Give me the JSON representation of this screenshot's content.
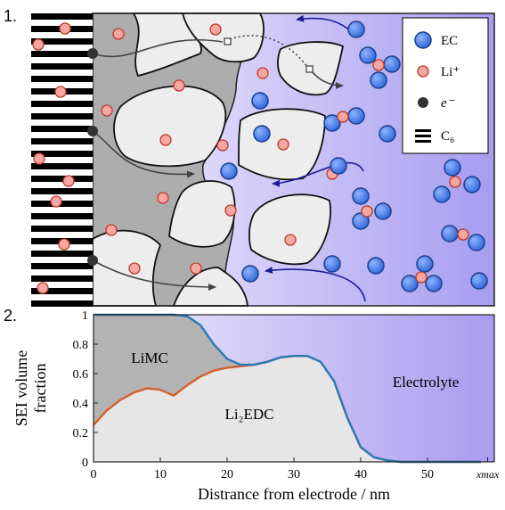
{
  "panels": [
    "1.",
    "2."
  ],
  "legend": [
    "EC",
    "Li⁺",
    "e⁻",
    "C₆"
  ],
  "chart_data": {
    "type": "stacked-area",
    "xlabel": "Distrance from electrode / nm",
    "ylabel": [
      "SEI volume",
      "fraction"
    ],
    "x": [
      0,
      2,
      4,
      6,
      8,
      10,
      12,
      14,
      16,
      18,
      20,
      22,
      24,
      26,
      28,
      30,
      32,
      34,
      36,
      38,
      40,
      42,
      44,
      46,
      48,
      50,
      52,
      54,
      56,
      58
    ],
    "series": [
      {
        "name": "Li₂EDC",
        "color": "#e6e6e6",
        "line_color": "#d4602a",
        "values": [
          0.25,
          0.35,
          0.42,
          0.47,
          0.5,
          0.49,
          0.45,
          0.52,
          0.58,
          0.62,
          0.64,
          0.65,
          0.66,
          0.68,
          0.71,
          0.72,
          0.72,
          0.68,
          0.55,
          0.3,
          0.1,
          0.03,
          0.01,
          0,
          0,
          0,
          0,
          0,
          0,
          0
        ]
      },
      {
        "name": "LiMC",
        "color": "#b3b3b3",
        "line_color": "#2a7ab5",
        "values": [
          0.75,
          0.65,
          0.58,
          0.53,
          0.5,
          0.51,
          0.55,
          0.47,
          0.35,
          0.18,
          0.06,
          0.01,
          0,
          0,
          0,
          0,
          0,
          0,
          0,
          0,
          0,
          0,
          0,
          0,
          0,
          0,
          0,
          0,
          0,
          0
        ]
      },
      {
        "name": "Electrolyte",
        "color": "#a99cf0",
        "values": [
          0,
          0,
          0,
          0,
          0,
          0,
          0,
          0.01,
          0.07,
          0.2,
          0.3,
          0.34,
          0.34,
          0.32,
          0.29,
          0.28,
          0.28,
          0.32,
          0.45,
          0.7,
          0.9,
          0.97,
          0.99,
          1,
          1,
          1,
          1,
          1,
          1,
          1
        ]
      }
    ],
    "xlim": [
      0,
      60
    ],
    "ylim": [
      0,
      1
    ],
    "xticks": [
      0,
      10,
      20,
      30,
      40,
      50,
      {
        "value": 59,
        "label": "xmax"
      }
    ],
    "yticks": [
      0,
      0.2,
      0.4,
      0.6,
      0.8,
      1
    ],
    "grid": false
  }
}
